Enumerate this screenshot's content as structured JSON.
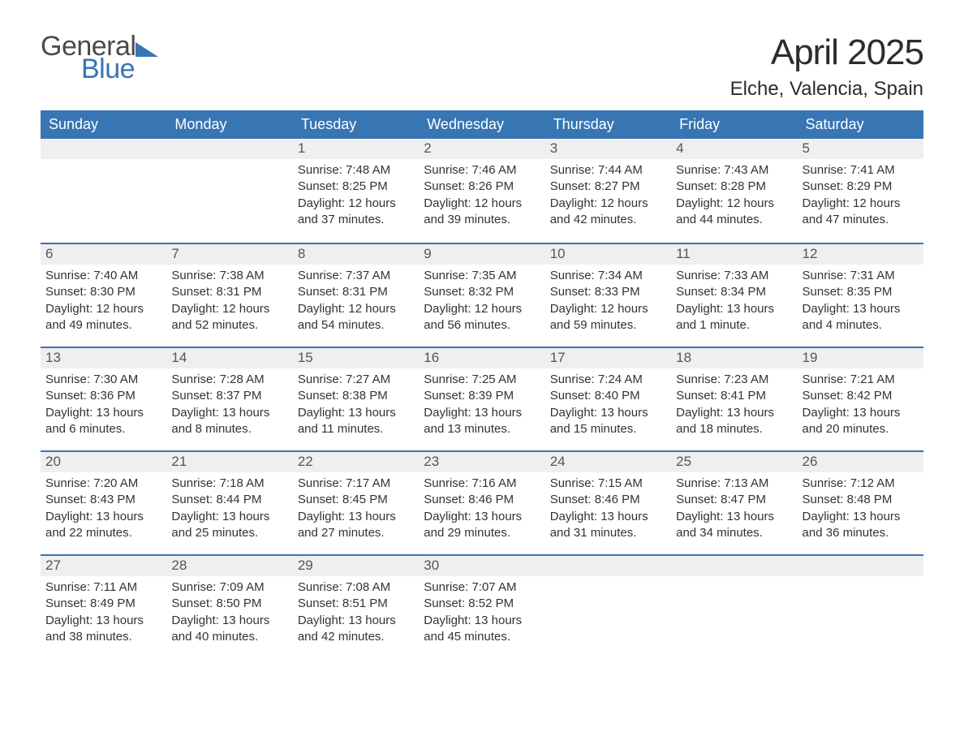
{
  "colors": {
    "header_bg": "#3875b3",
    "header_text": "#ffffff",
    "daynum_bg": "#efefef",
    "daynum_text": "#555555",
    "body_text": "#333333",
    "logo_gray": "#4a4a4a",
    "logo_blue": "#3875b3",
    "page_bg": "#ffffff",
    "week_divider": "#3875b3"
  },
  "typography": {
    "title_fontsize": 44,
    "location_fontsize": 24,
    "header_fontsize": 18,
    "daynum_fontsize": 17,
    "body_fontsize": 15,
    "logo_fontsize": 34
  },
  "logo": {
    "word1": "General",
    "word2": "Blue"
  },
  "title": "April 2025",
  "location": "Elche, Valencia, Spain",
  "day_headers": [
    "Sunday",
    "Monday",
    "Tuesday",
    "Wednesday",
    "Thursday",
    "Friday",
    "Saturday"
  ],
  "labels": {
    "sunrise": "Sunrise:",
    "sunset": "Sunset:",
    "daylight": "Daylight:"
  },
  "weeks": [
    [
      null,
      null,
      {
        "n": "1",
        "sunrise": "7:48 AM",
        "sunset": "8:25 PM",
        "daylight": "12 hours and 37 minutes."
      },
      {
        "n": "2",
        "sunrise": "7:46 AM",
        "sunset": "8:26 PM",
        "daylight": "12 hours and 39 minutes."
      },
      {
        "n": "3",
        "sunrise": "7:44 AM",
        "sunset": "8:27 PM",
        "daylight": "12 hours and 42 minutes."
      },
      {
        "n": "4",
        "sunrise": "7:43 AM",
        "sunset": "8:28 PM",
        "daylight": "12 hours and 44 minutes."
      },
      {
        "n": "5",
        "sunrise": "7:41 AM",
        "sunset": "8:29 PM",
        "daylight": "12 hours and 47 minutes."
      }
    ],
    [
      {
        "n": "6",
        "sunrise": "7:40 AM",
        "sunset": "8:30 PM",
        "daylight": "12 hours and 49 minutes."
      },
      {
        "n": "7",
        "sunrise": "7:38 AM",
        "sunset": "8:31 PM",
        "daylight": "12 hours and 52 minutes."
      },
      {
        "n": "8",
        "sunrise": "7:37 AM",
        "sunset": "8:31 PM",
        "daylight": "12 hours and 54 minutes."
      },
      {
        "n": "9",
        "sunrise": "7:35 AM",
        "sunset": "8:32 PM",
        "daylight": "12 hours and 56 minutes."
      },
      {
        "n": "10",
        "sunrise": "7:34 AM",
        "sunset": "8:33 PM",
        "daylight": "12 hours and 59 minutes."
      },
      {
        "n": "11",
        "sunrise": "7:33 AM",
        "sunset": "8:34 PM",
        "daylight": "13 hours and 1 minute."
      },
      {
        "n": "12",
        "sunrise": "7:31 AM",
        "sunset": "8:35 PM",
        "daylight": "13 hours and 4 minutes."
      }
    ],
    [
      {
        "n": "13",
        "sunrise": "7:30 AM",
        "sunset": "8:36 PM",
        "daylight": "13 hours and 6 minutes."
      },
      {
        "n": "14",
        "sunrise": "7:28 AM",
        "sunset": "8:37 PM",
        "daylight": "13 hours and 8 minutes."
      },
      {
        "n": "15",
        "sunrise": "7:27 AM",
        "sunset": "8:38 PM",
        "daylight": "13 hours and 11 minutes."
      },
      {
        "n": "16",
        "sunrise": "7:25 AM",
        "sunset": "8:39 PM",
        "daylight": "13 hours and 13 minutes."
      },
      {
        "n": "17",
        "sunrise": "7:24 AM",
        "sunset": "8:40 PM",
        "daylight": "13 hours and 15 minutes."
      },
      {
        "n": "18",
        "sunrise": "7:23 AM",
        "sunset": "8:41 PM",
        "daylight": "13 hours and 18 minutes."
      },
      {
        "n": "19",
        "sunrise": "7:21 AM",
        "sunset": "8:42 PM",
        "daylight": "13 hours and 20 minutes."
      }
    ],
    [
      {
        "n": "20",
        "sunrise": "7:20 AM",
        "sunset": "8:43 PM",
        "daylight": "13 hours and 22 minutes."
      },
      {
        "n": "21",
        "sunrise": "7:18 AM",
        "sunset": "8:44 PM",
        "daylight": "13 hours and 25 minutes."
      },
      {
        "n": "22",
        "sunrise": "7:17 AM",
        "sunset": "8:45 PM",
        "daylight": "13 hours and 27 minutes."
      },
      {
        "n": "23",
        "sunrise": "7:16 AM",
        "sunset": "8:46 PM",
        "daylight": "13 hours and 29 minutes."
      },
      {
        "n": "24",
        "sunrise": "7:15 AM",
        "sunset": "8:46 PM",
        "daylight": "13 hours and 31 minutes."
      },
      {
        "n": "25",
        "sunrise": "7:13 AM",
        "sunset": "8:47 PM",
        "daylight": "13 hours and 34 minutes."
      },
      {
        "n": "26",
        "sunrise": "7:12 AM",
        "sunset": "8:48 PM",
        "daylight": "13 hours and 36 minutes."
      }
    ],
    [
      {
        "n": "27",
        "sunrise": "7:11 AM",
        "sunset": "8:49 PM",
        "daylight": "13 hours and 38 minutes."
      },
      {
        "n": "28",
        "sunrise": "7:09 AM",
        "sunset": "8:50 PM",
        "daylight": "13 hours and 40 minutes."
      },
      {
        "n": "29",
        "sunrise": "7:08 AM",
        "sunset": "8:51 PM",
        "daylight": "13 hours and 42 minutes."
      },
      {
        "n": "30",
        "sunrise": "7:07 AM",
        "sunset": "8:52 PM",
        "daylight": "13 hours and 45 minutes."
      },
      null,
      null,
      null
    ]
  ]
}
